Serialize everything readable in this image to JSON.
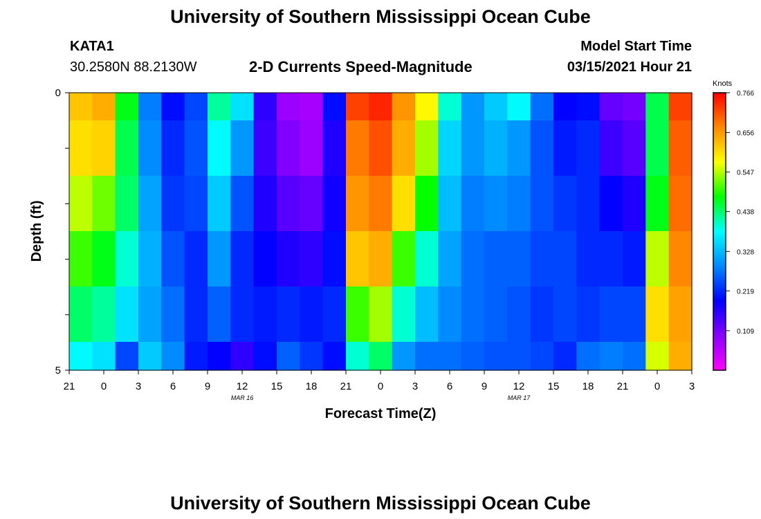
{
  "header": {
    "title": "University of Southern Mississippi Ocean Cube",
    "station": "KATA1",
    "coords": "30.2580N 88.2130W",
    "subtitle": "2-D Currents Speed-Magnitude",
    "start_label": "Model Start Time",
    "start_value": "03/15/2021 Hour 21"
  },
  "footer": {
    "title": "University of Southern Mississippi Ocean Cube"
  },
  "chart_data": {
    "type": "heatmap",
    "title": "2-D Currents Speed-Magnitude",
    "xlabel": "Forecast Time(Z)",
    "ylabel": "Depth (ft)",
    "x_ticks": [
      "21",
      "0",
      "3",
      "6",
      "9",
      "12",
      "15",
      "18",
      "21",
      "0",
      "3",
      "6",
      "9",
      "12",
      "15",
      "18",
      "21",
      "0",
      "3"
    ],
    "date_labels": [
      {
        "tick_index": 5,
        "label": "MAR 16"
      },
      {
        "tick_index": 13,
        "label": "MAR 17"
      }
    ],
    "y_ticks": [
      "0",
      "5"
    ],
    "ylim": [
      0,
      5
    ],
    "colorbar": {
      "unit": "Knots",
      "ticks": [
        "0.766",
        "0.656",
        "0.547",
        "0.438",
        "0.328",
        "0.219",
        "0.109"
      ],
      "range": [
        0,
        0.766
      ],
      "colors": [
        "#ff00ff",
        "#8800ff",
        "#0000ff",
        "#0088ff",
        "#00ffff",
        "#00ff00",
        "#ffff00",
        "#ff8800",
        "#ff0000"
      ]
    },
    "x_hours": [
      0,
      2,
      4,
      6,
      8,
      10,
      12,
      14,
      16,
      18,
      20,
      22,
      24,
      26,
      28,
      30,
      32,
      34,
      36,
      38,
      40,
      42,
      44,
      46,
      48,
      50,
      52,
      54
    ],
    "depth_layers": [
      0.5,
      1.5,
      2.5,
      3.5,
      4.5,
      5.0
    ],
    "values": [
      [
        0.62,
        0.64,
        0.47,
        0.28,
        0.2,
        0.24,
        0.42,
        0.36,
        0.16,
        0.08,
        0.07,
        0.2,
        0.72,
        0.74,
        0.66,
        0.58,
        0.4,
        0.3,
        0.34,
        0.38,
        0.27,
        0.19,
        0.2,
        0.12,
        0.11,
        0.45,
        0.72,
        0.74
      ],
      [
        0.6,
        0.61,
        0.45,
        0.29,
        0.22,
        0.25,
        0.38,
        0.3,
        0.15,
        0.1,
        0.08,
        0.17,
        0.68,
        0.71,
        0.64,
        0.54,
        0.35,
        0.3,
        0.32,
        0.3,
        0.25,
        0.21,
        0.22,
        0.15,
        0.13,
        0.45,
        0.7,
        0.72
      ],
      [
        0.55,
        0.52,
        0.44,
        0.31,
        0.23,
        0.24,
        0.34,
        0.25,
        0.17,
        0.13,
        0.12,
        0.18,
        0.66,
        0.68,
        0.6,
        0.48,
        0.33,
        0.28,
        0.29,
        0.28,
        0.25,
        0.23,
        0.22,
        0.19,
        0.17,
        0.47,
        0.69,
        0.7
      ],
      [
        0.5,
        0.47,
        0.4,
        0.32,
        0.25,
        0.22,
        0.3,
        0.22,
        0.19,
        0.17,
        0.16,
        0.2,
        0.62,
        0.64,
        0.5,
        0.4,
        0.31,
        0.27,
        0.26,
        0.26,
        0.24,
        0.24,
        0.22,
        0.22,
        0.21,
        0.55,
        0.67,
        0.68
      ],
      [
        0.44,
        0.42,
        0.36,
        0.31,
        0.27,
        0.22,
        0.26,
        0.22,
        0.21,
        0.22,
        0.21,
        0.22,
        0.5,
        0.54,
        0.4,
        0.33,
        0.29,
        0.27,
        0.26,
        0.25,
        0.23,
        0.24,
        0.23,
        0.24,
        0.24,
        0.6,
        0.65,
        0.66
      ],
      [
        0.38,
        0.36,
        0.24,
        0.34,
        0.29,
        0.21,
        0.19,
        0.16,
        0.2,
        0.26,
        0.23,
        0.2,
        0.4,
        0.44,
        0.3,
        0.27,
        0.27,
        0.26,
        0.25,
        0.25,
        0.24,
        0.22,
        0.27,
        0.28,
        0.27,
        0.56,
        0.64,
        0.64
      ]
    ]
  }
}
